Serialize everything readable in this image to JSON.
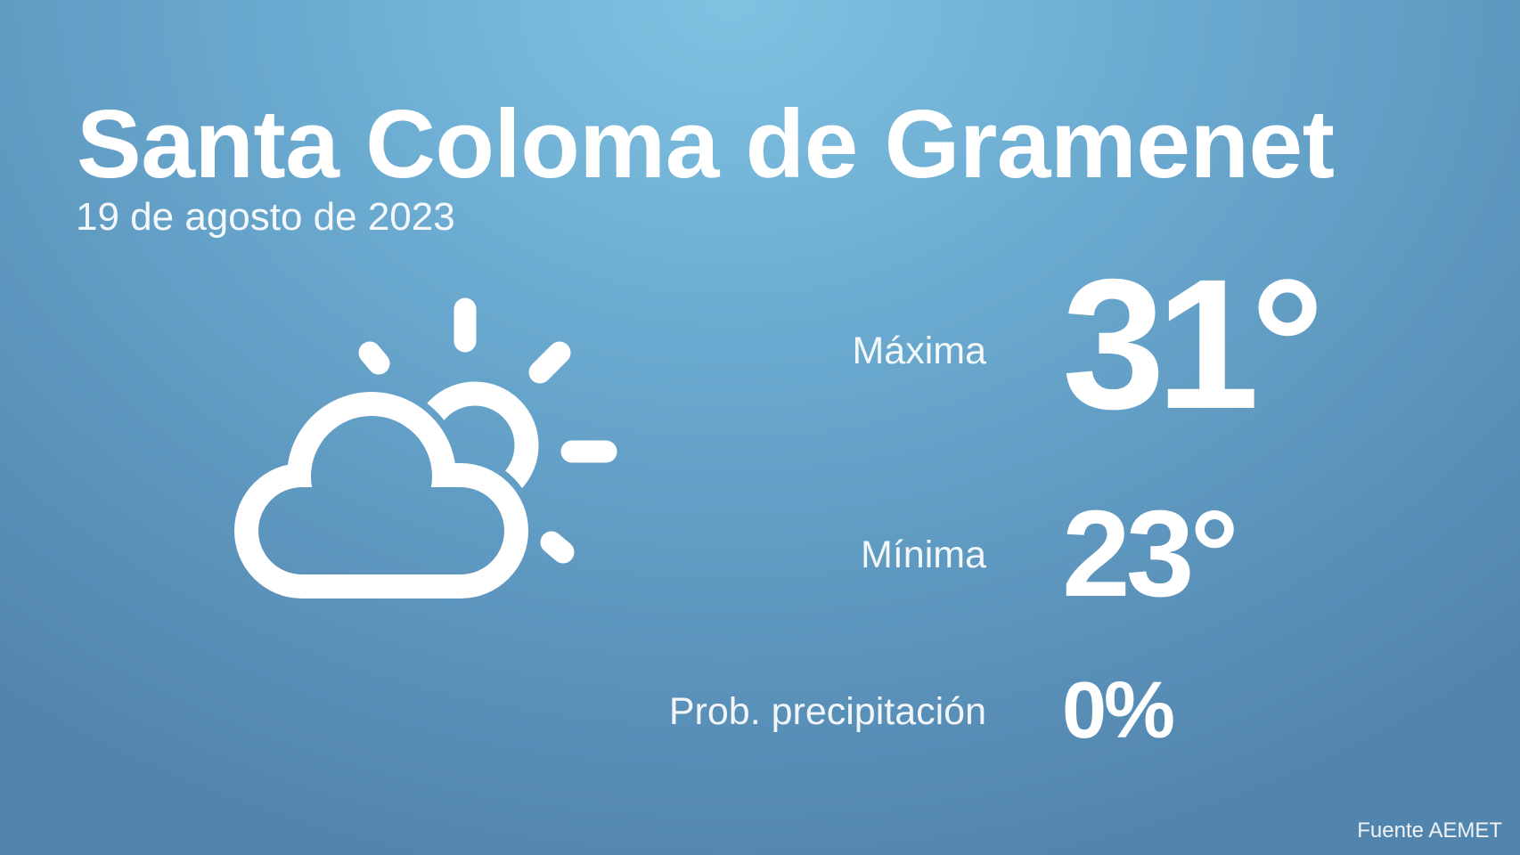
{
  "header": {
    "city": "Santa Coloma de Gramenet",
    "date": "19 de agosto de 2023"
  },
  "forecast": {
    "icon": "partly-cloudy-icon",
    "max_label": "Máxima",
    "max_value": "31°",
    "min_label": "Mínima",
    "min_value": "23°",
    "precip_label": "Prob. precipitación",
    "precip_value": "0%"
  },
  "footer": {
    "source": "Fuente AEMET"
  },
  "colors": {
    "background_top": "#80c2e2",
    "background_bottom": "#5285ae",
    "text": "#ffffff"
  }
}
